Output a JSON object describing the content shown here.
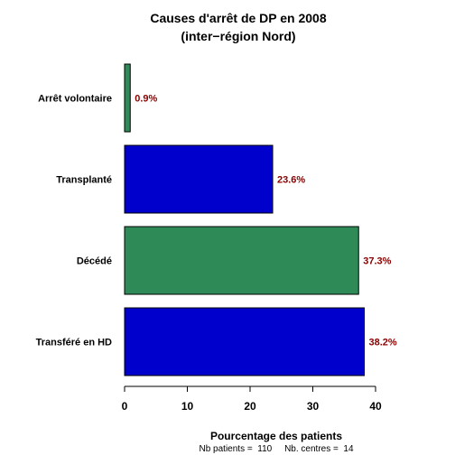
{
  "chart_data": {
    "type": "bar",
    "orientation": "horizontal",
    "title_line1": "Causes d'arrêt de DP en 2008",
    "title_line2": "(inter−région Nord)",
    "categories": [
      "Transféré en HD",
      "Décédé",
      "Transplanté",
      "Arrêt volontaire"
    ],
    "values": [
      38.2,
      37.3,
      23.6,
      0.9
    ],
    "value_labels": [
      "38.2%",
      "37.3%",
      "23.6%",
      "0.9%"
    ],
    "bar_colors": [
      "#0000cd",
      "#2e8b57",
      "#0000cd",
      "#2e8b57"
    ],
    "value_label_color": "#8b0000",
    "xlabel": "Pourcentage des patients",
    "xlim": [
      0,
      40
    ],
    "xticks": [
      0,
      10,
      20,
      30,
      40
    ],
    "xtick_labels": [
      "0",
      "10",
      "20",
      "30",
      "40"
    ],
    "grid": false,
    "footnote": "Nb patients =  110     Nb. centres =  14"
  }
}
